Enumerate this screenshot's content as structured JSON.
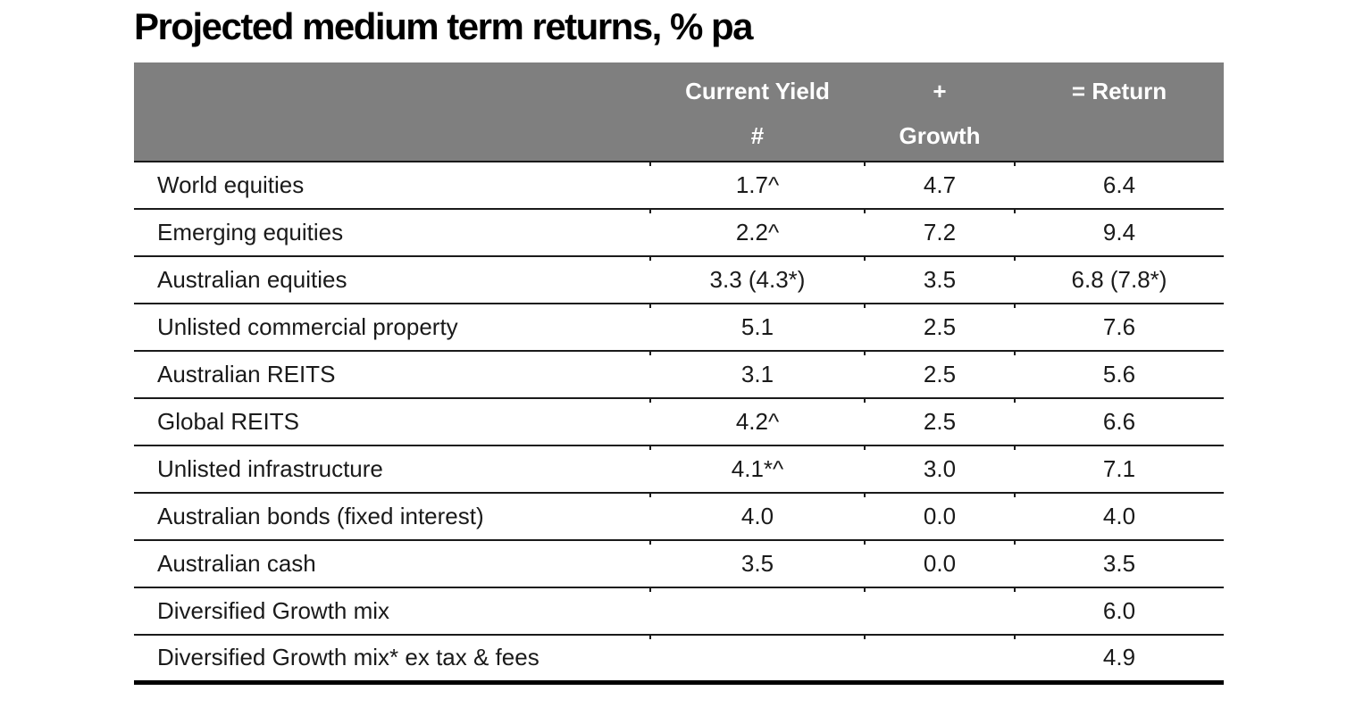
{
  "title": "Projected medium term returns, % pa",
  "table": {
    "header": {
      "label": "",
      "current_yield_line1": "Current Yield",
      "current_yield_line2": "#",
      "growth_line1": "+",
      "growth_line2": "Growth",
      "return_line1": "= Return",
      "return_line2": ""
    },
    "rows": [
      {
        "label": "World equities",
        "current_yield": "1.7^",
        "growth": "4.7",
        "return": "6.4"
      },
      {
        "label": "Emerging equities",
        "current_yield": "2.2^",
        "growth": "7.2",
        "return": "9.4"
      },
      {
        "label": "Australian equities",
        "current_yield": "3.3 (4.3*)",
        "growth": "3.5",
        "return": "6.8 (7.8*)"
      },
      {
        "label": "Unlisted commercial property",
        "current_yield": "5.1",
        "growth": "2.5",
        "return": "7.6"
      },
      {
        "label": "Australian REITS",
        "current_yield": "3.1",
        "growth": "2.5",
        "return": "5.6"
      },
      {
        "label": "Global REITS",
        "current_yield": "4.2^",
        "growth": "2.5",
        "return": "6.6"
      },
      {
        "label": "Unlisted infrastructure",
        "current_yield": "4.1*^",
        "growth": "3.0",
        "return": "7.1"
      },
      {
        "label": "Australian bonds (fixed interest)",
        "current_yield": "4.0",
        "growth": "0.0",
        "return": "4.0"
      },
      {
        "label": "Australian cash",
        "current_yield": "3.5",
        "growth": "0.0",
        "return": "3.5"
      },
      {
        "label": "Diversified Growth mix",
        "current_yield": "",
        "growth": "",
        "return": "6.0"
      },
      {
        "label": "Diversified Growth mix* ex tax & fees",
        "current_yield": "",
        "growth": "",
        "return": "4.9"
      }
    ]
  },
  "colors": {
    "header_bg": "#7f7f7f",
    "header_text": "#ffffff",
    "text": "#1a1a1a",
    "line": "#1a1a1a",
    "bottom": "#000000",
    "page_bg": "#ffffff"
  }
}
